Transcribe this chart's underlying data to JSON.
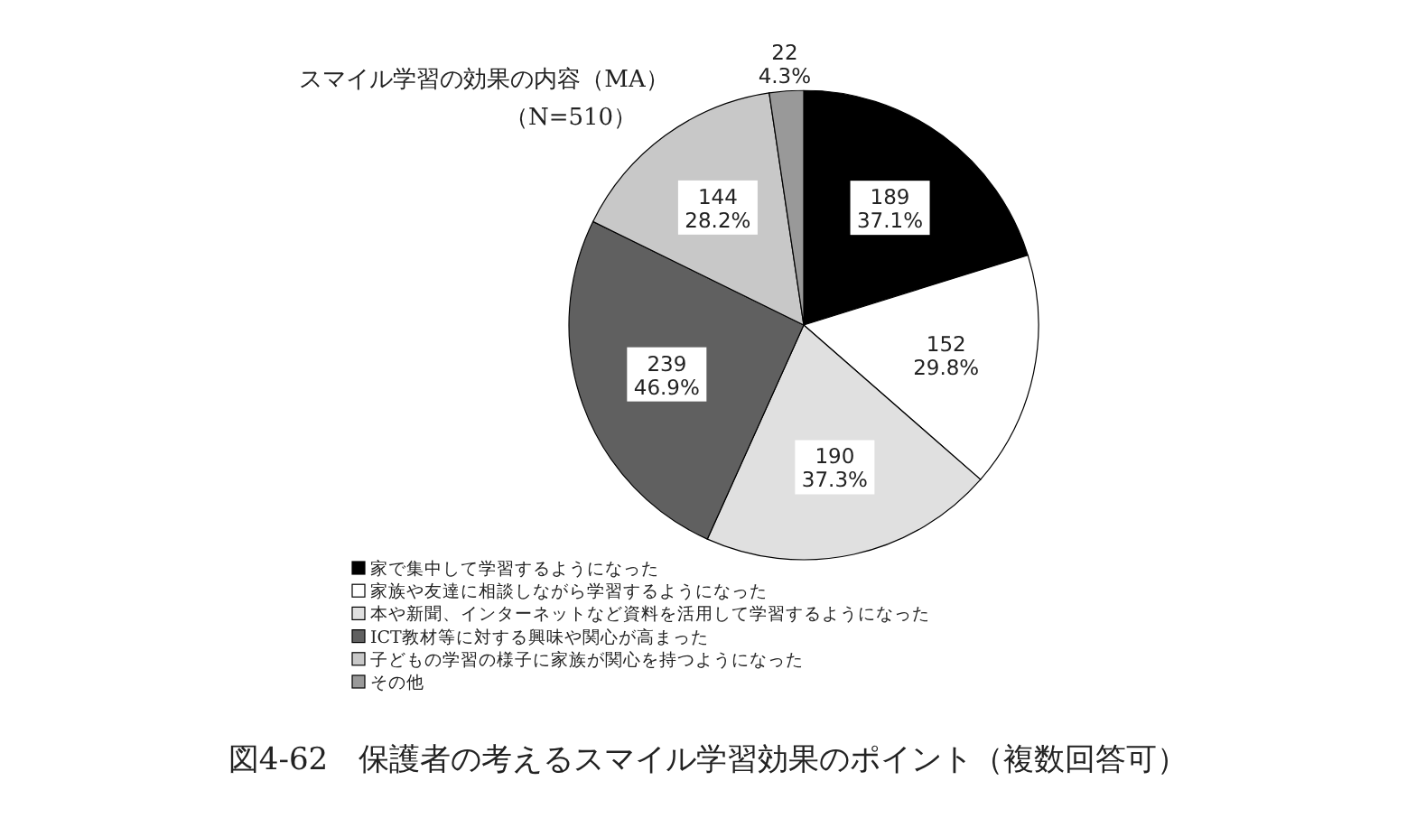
{
  "chart_data": {
    "type": "pie",
    "title": "スマイル学習の効果の内容（MA）",
    "subtitle": "（N=510）",
    "categories": [
      "家で集中して学習するようになった",
      "家族や友達に相談しながら学習するようになった",
      "本や新聞、インターネットなど資料を活用して学習するようになった",
      "ICT教材等に対する興味や関心が高まった",
      "子どもの学習の様子に家族が関心を持つようになった",
      "その他"
    ],
    "values": [
      189,
      152,
      190,
      239,
      144,
      22
    ],
    "value_labels": [
      "189\n37.1%",
      "152\n29.8%",
      "190\n37.3%",
      "239\n46.9%",
      "144\n28.2%",
      "22\n4.3%"
    ],
    "colors": [
      "#000000",
      "#ffffff",
      "#e0e0e0",
      "#606060",
      "#c8c8c8",
      "#999999"
    ],
    "legend": "bottom",
    "annotations": [
      "図4-62　保護者の考えるスマイル学習効果のポイント（複数回答可）"
    ]
  }
}
